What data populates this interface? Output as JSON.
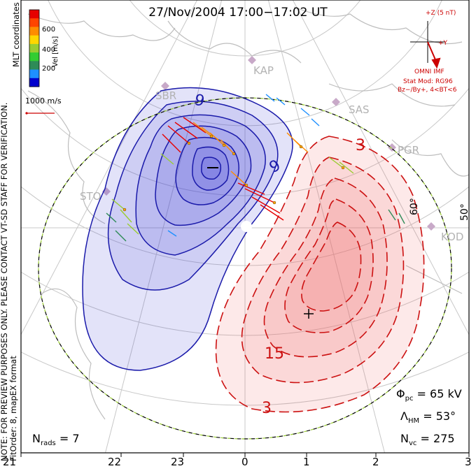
{
  "header": {
    "title": "27/Nov/2004  17:00−17:02  UT"
  },
  "side_note": {
    "line1": "NOTE: FOR PREVIEW PURPOSES ONLY. PLEASE CONTACT VT-SD STAFF FOR VERIFICATION.",
    "line2": "FitOrder: 8, mapEX format"
  },
  "coords_label": "MLT coordinates",
  "colorbar": {
    "title": "Vel [m/s]",
    "ticks": [
      "600",
      "400",
      "200"
    ],
    "colors": [
      "#e60000",
      "#ff4400",
      "#ff8c00",
      "#ffd700",
      "#9acd32",
      "#32cd32",
      "#2e8b57",
      "#1e90ff",
      "#0000cd"
    ]
  },
  "velocity_scale": {
    "label": "1000 m/s",
    "color": "#cc0000"
  },
  "imf": {
    "axis_z_label": "+Z (5 nT)",
    "axis_y_label": "+Y",
    "title": "OMNI IMF",
    "model": "Stat Mod: RG96",
    "condition": "Bz−/By+, 4<BT<6"
  },
  "stats": {
    "phi_pc": "65 kV",
    "lambda_hm": "53°",
    "n_vc": "275",
    "n_rads": "7"
  },
  "mlt_labels": [
    "21",
    "22",
    "23",
    "0",
    "1",
    "2",
    "3"
  ],
  "stations": [
    "KAP",
    "SAS",
    "PGR",
    "KOD",
    "STO",
    "SBR"
  ],
  "latitude_labels": [
    "60°",
    "50°"
  ],
  "contours": {
    "negative_cell_label": "9",
    "negative_cell_label_2": "9",
    "positive_cell_label_top": "3",
    "positive_cell_label_15": "15",
    "positive_cell_label_bottom": "3",
    "min_symbol": "−",
    "max_symbol": "+"
  },
  "map_colors": {
    "negative_line": "#1a1aaa",
    "negative_fill": "#3b3bd6",
    "positive_line": "#cc1111",
    "positive_fill": "#f06464",
    "grid": "#c8c8c8",
    "coast": "#bdbdbd",
    "hm_boundary_dash": "#9acd32"
  }
}
